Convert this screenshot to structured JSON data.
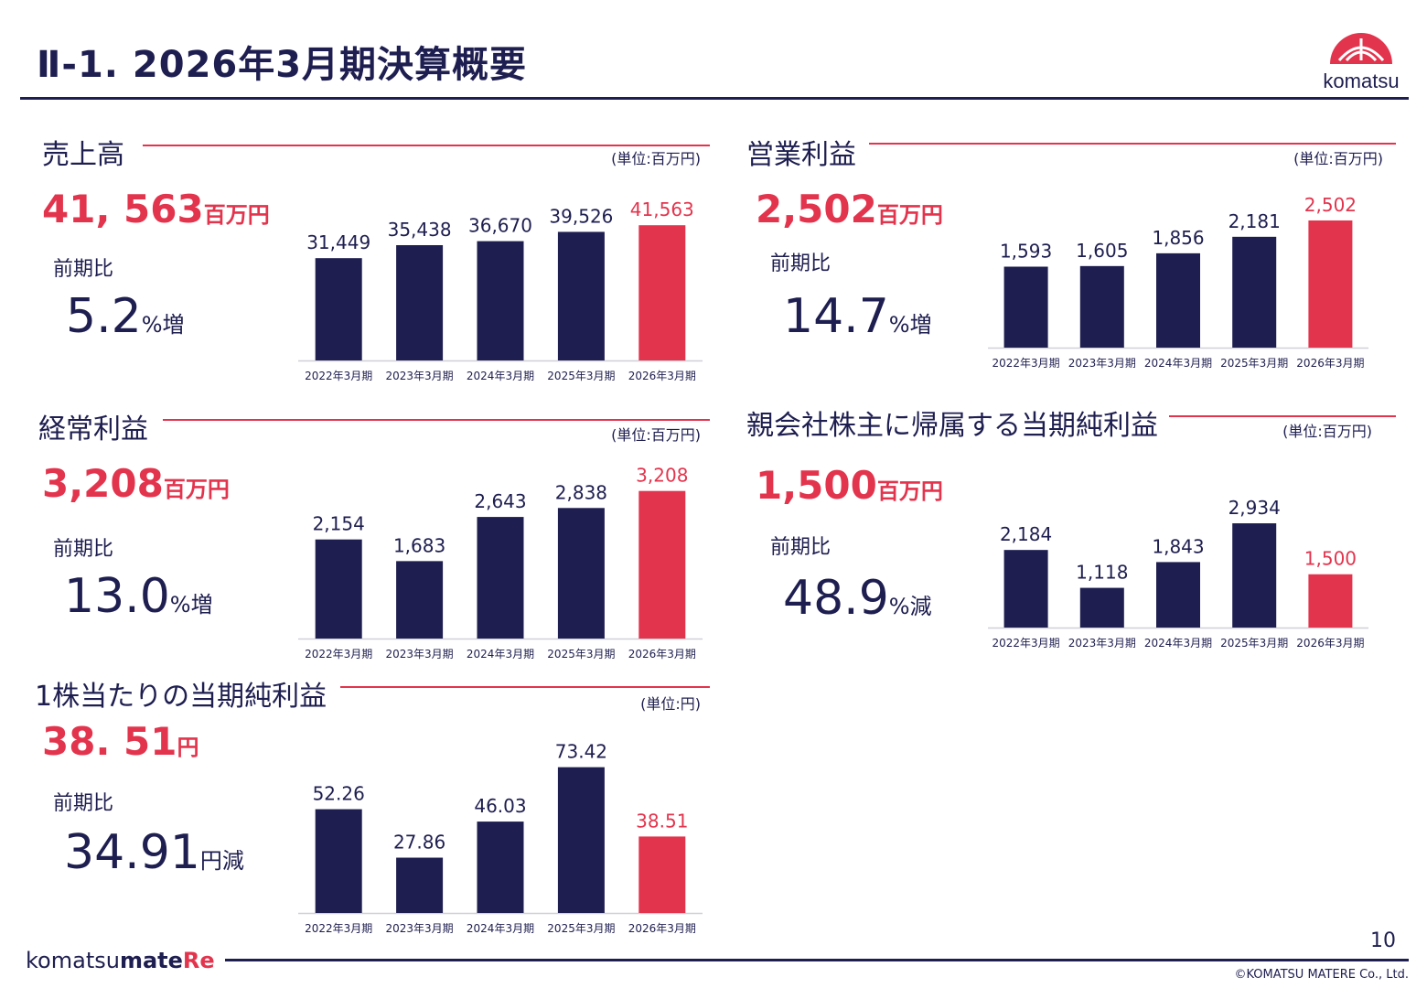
{
  "header": {
    "title": "Ⅱ-1. 2026年3月期決算概要"
  },
  "logo": {
    "brand_text": "komatsu"
  },
  "colors": {
    "navy": "#1e1e50",
    "accent": "#e3344d"
  },
  "sections": [
    {
      "title": "売上高",
      "unit": "(単位:百万円)",
      "value": "41, 563",
      "value_suffix": "百万円",
      "yoy_label": "前期比",
      "yoy_value": "5.2",
      "yoy_suffix": "%増"
    },
    {
      "title": "営業利益",
      "unit": "(単位:百万円)",
      "value": "2,502",
      "value_suffix": "百万円",
      "yoy_label": "前期比",
      "yoy_value": "14.7",
      "yoy_suffix": "%増"
    },
    {
      "title": "経常利益",
      "unit": "(単位:百万円)",
      "value": "3,208",
      "value_suffix": "百万円",
      "yoy_label": "前期比",
      "yoy_value": "13.0",
      "yoy_suffix": "%増"
    },
    {
      "title": "親会社株主に帰属する当期純利益",
      "unit": "(単位:百万円)",
      "value": "1,500",
      "value_suffix": "百万円",
      "yoy_label": "前期比",
      "yoy_value": "48.9",
      "yoy_suffix": "%減"
    },
    {
      "title": "1株当たりの当期純利益",
      "unit": "(単位:円)",
      "value": "38. 51",
      "value_suffix": "円",
      "yoy_label": "前期比",
      "yoy_value": "34.91",
      "yoy_suffix": "円減"
    }
  ],
  "chart_data": [
    {
      "type": "bar",
      "categories": [
        "2022年3月期",
        "2023年3月期",
        "2024年3月期",
        "2025年3月期",
        "2026年3月期"
      ],
      "values": [
        31449,
        35438,
        36670,
        39526,
        41563
      ],
      "labels": [
        "31,449",
        "35,438",
        "36,670",
        "39,526",
        "41,563"
      ],
      "ylim": [
        0,
        45000
      ],
      "highlight_index": 4
    },
    {
      "type": "bar",
      "categories": [
        "2022年3月期",
        "2023年3月期",
        "2024年3月期",
        "2025年3月期",
        "2026年3月期"
      ],
      "values": [
        1593,
        1605,
        1856,
        2181,
        2502
      ],
      "labels": [
        "1,593",
        "1,605",
        "1,856",
        "2,181",
        "2,502"
      ],
      "ylim": [
        0,
        2700
      ],
      "highlight_index": 4
    },
    {
      "type": "bar",
      "categories": [
        "2022年3月期",
        "2023年3月期",
        "2024年3月期",
        "2025年3月期",
        "2026年3月期"
      ],
      "values": [
        2154,
        1683,
        2643,
        2838,
        3208
      ],
      "labels": [
        "2,154",
        "1,683",
        "2,643",
        "2,838",
        "3,208"
      ],
      "ylim": [
        0,
        3500
      ],
      "highlight_index": 4
    },
    {
      "type": "bar",
      "categories": [
        "2022年3月期",
        "2023年3月期",
        "2024年3月期",
        "2025年3月期",
        "2026年3月期"
      ],
      "values": [
        2184,
        1118,
        1843,
        2934,
        1500
      ],
      "labels": [
        "2,184",
        "1,118",
        "1,843",
        "2,934",
        "1,500"
      ],
      "ylim": [
        0,
        3450
      ],
      "highlight_index": 4
    },
    {
      "type": "bar",
      "categories": [
        "2022年3月期",
        "2023年3月期",
        "2024年3月期",
        "2025年3月期",
        "2026年3月期"
      ],
      "values": [
        52.26,
        27.86,
        46.03,
        73.42,
        38.51
      ],
      "labels": [
        "52.26",
        "27.86",
        "46.03",
        "73.42",
        "38.51"
      ],
      "ylim": [
        0,
        82
      ],
      "highlight_index": 4
    }
  ],
  "footer": {
    "logo_part1": "komatsu",
    "logo_part2": "mate",
    "logo_part3": "Re",
    "page_number": "10",
    "copyright": "©KOMATSU MATERE Co., Ltd."
  }
}
